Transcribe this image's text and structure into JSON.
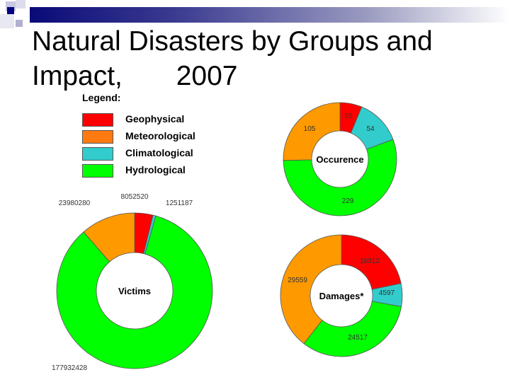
{
  "title_line1": "Natural Disasters by Groups and",
  "title_line2": "Impact,       2007",
  "legend": {
    "title": "Legend:",
    "items": [
      {
        "label": "Geophysical",
        "color": "#ff0000"
      },
      {
        "label": "Meteorological",
        "color": "#ff7a10"
      },
      {
        "label": "Climatological",
        "color": "#33cccc"
      },
      {
        "label": "Hydrological",
        "color": "#00ff00"
      }
    ]
  },
  "chart_data": [
    {
      "type": "pie",
      "variant": "donut",
      "title": "Occurence",
      "categories": [
        "Geophysical",
        "Climatological",
        "Hydrological",
        "Meteorological"
      ],
      "values": [
        26,
        54,
        229,
        105
      ],
      "colors": [
        "#ff0000",
        "#33cccc",
        "#00ff00",
        "#ff9900"
      ]
    },
    {
      "type": "pie",
      "variant": "donut",
      "title": "Victims",
      "categories": [
        "Geophysical",
        "Climatological",
        "Hydrological",
        "Meteorological"
      ],
      "values": [
        8052520,
        1251187,
        177932428,
        23980280
      ],
      "colors": [
        "#ff0000",
        "#33cccc",
        "#00ff00",
        "#ff9900"
      ]
    },
    {
      "type": "pie",
      "variant": "donut",
      "title": "Damages*",
      "categories": [
        "Geophysical",
        "Climatological",
        "Hydrological",
        "Meteorological"
      ],
      "values": [
        16312,
        4597,
        24517,
        29559
      ],
      "colors": [
        "#ff0000",
        "#33cccc",
        "#00ff00",
        "#ff9900"
      ]
    }
  ]
}
